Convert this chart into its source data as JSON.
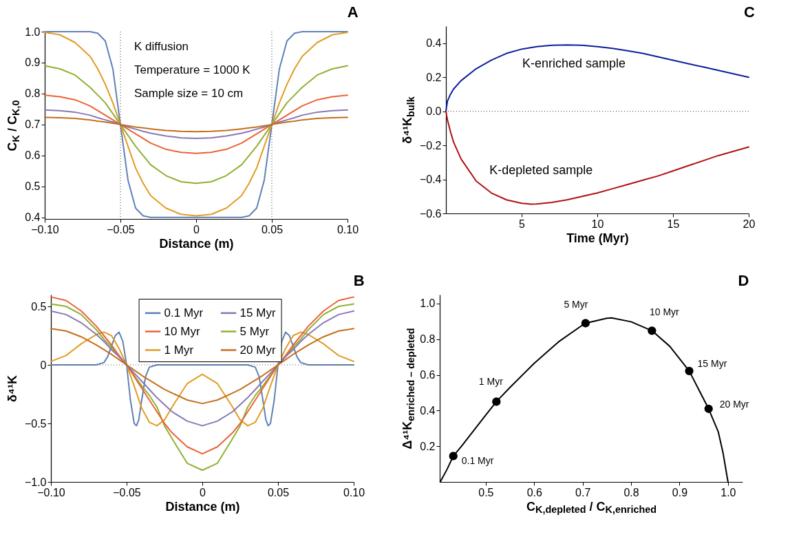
{
  "chart_data": [
    {
      "type": "line",
      "title": "A",
      "xlabel": "Distance (m)",
      "ylabel": "C$_{K}$ / C$_{K,0}$",
      "xlim": [
        -0.1,
        0.1
      ],
      "ylim": [
        0.395,
        1.0
      ],
      "xticks": [
        {
          "value": -0.1,
          "label": "−0.10"
        },
        -0.05,
        0,
        0.05,
        {
          "value": 0.1,
          "label": "0.10"
        }
      ],
      "yticks": [
        0.4,
        0.5,
        0.6,
        0.7,
        0.8,
        0.9,
        {
          "value": 1.0,
          "label": "1.0"
        }
      ],
      "x": [
        -0.1,
        -0.09,
        -0.08,
        -0.07,
        -0.065,
        -0.06,
        -0.055,
        -0.05,
        -0.045,
        -0.04,
        -0.035,
        -0.03,
        -0.02,
        -0.01,
        0,
        0.01,
        0.02,
        0.03,
        0.035,
        0.04,
        0.045,
        0.05,
        0.055,
        0.06,
        0.065,
        0.07,
        0.08,
        0.09,
        0.1
      ],
      "series": [
        {
          "color": "#5e81b5",
          "values": [
            1,
            1,
            1,
            1,
            0.995,
            0.97,
            0.88,
            0.7,
            0.52,
            0.43,
            0.405,
            0.4,
            0.4,
            0.4,
            0.4,
            0.4,
            0.4,
            0.4,
            0.405,
            0.43,
            0.52,
            0.7,
            0.88,
            0.97,
            0.995,
            1,
            1,
            1,
            1
          ]
        },
        {
          "color": "#e19c24",
          "values": [
            0.998,
            0.99,
            0.965,
            0.92,
            0.88,
            0.83,
            0.77,
            0.7,
            0.63,
            0.56,
            0.51,
            0.47,
            0.43,
            0.41,
            0.405,
            0.41,
            0.43,
            0.47,
            0.51,
            0.56,
            0.63,
            0.7,
            0.77,
            0.83,
            0.88,
            0.92,
            0.965,
            0.99,
            0.998
          ]
        },
        {
          "color": "#8fb032",
          "values": [
            0.89,
            0.88,
            0.86,
            0.82,
            0.795,
            0.77,
            0.735,
            0.7,
            0.665,
            0.63,
            0.6,
            0.57,
            0.535,
            0.515,
            0.51,
            0.515,
            0.535,
            0.57,
            0.6,
            0.63,
            0.665,
            0.7,
            0.735,
            0.77,
            0.795,
            0.82,
            0.86,
            0.88,
            0.89
          ]
        },
        {
          "color": "#eb6235",
          "values": [
            0.795,
            0.79,
            0.78,
            0.76,
            0.745,
            0.73,
            0.715,
            0.7,
            0.685,
            0.67,
            0.655,
            0.64,
            0.62,
            0.61,
            0.607,
            0.61,
            0.62,
            0.64,
            0.655,
            0.67,
            0.685,
            0.7,
            0.715,
            0.73,
            0.745,
            0.76,
            0.78,
            0.79,
            0.795
          ]
        },
        {
          "color": "#8778b3",
          "values": [
            0.747,
            0.745,
            0.74,
            0.73,
            0.722,
            0.715,
            0.708,
            0.7,
            0.692,
            0.685,
            0.678,
            0.672,
            0.663,
            0.657,
            0.655,
            0.657,
            0.663,
            0.672,
            0.678,
            0.685,
            0.692,
            0.7,
            0.708,
            0.715,
            0.722,
            0.73,
            0.74,
            0.745,
            0.747
          ]
        },
        {
          "color": "#c56e1a",
          "values": [
            0.723,
            0.722,
            0.72,
            0.715,
            0.711,
            0.708,
            0.704,
            0.7,
            0.696,
            0.692,
            0.689,
            0.686,
            0.681,
            0.678,
            0.677,
            0.678,
            0.681,
            0.686,
            0.689,
            0.692,
            0.696,
            0.7,
            0.704,
            0.708,
            0.711,
            0.715,
            0.72,
            0.722,
            0.723
          ]
        }
      ],
      "ref_lines": [
        {
          "axis": "x",
          "value": -0.05,
          "line_style": "dotted",
          "color": "#555555"
        },
        {
          "axis": "x",
          "value": 0.05,
          "line_style": "dotted",
          "color": "#555555"
        }
      ],
      "annotations": [
        "K diffusion",
        "Temperature = 1000 K",
        "Sample size = 10 cm"
      ]
    },
    {
      "type": "line",
      "title": "C",
      "xlabel": "Time (Myr)",
      "ylabel": "δ⁴¹K$_{bulk}$",
      "xlim": [
        0,
        20
      ],
      "ylim": [
        -0.6,
        0.5
      ],
      "xticks": [
        5,
        10,
        15,
        20
      ],
      "yticks": [
        -0.6,
        -0.4,
        -0.2,
        {
          "value": 0,
          "label": "0.0"
        },
        0.2,
        0.4
      ],
      "series": [
        {
          "name": "K-enriched sample",
          "color": "#0a1f9e",
          "x": [
            0,
            0.1,
            0.3,
            0.5,
            1,
            2,
            3,
            4,
            5,
            6,
            7,
            8,
            9,
            10,
            11,
            12,
            13,
            14,
            15,
            16,
            17,
            18,
            19,
            20
          ],
          "values": [
            0,
            0.06,
            0.1,
            0.13,
            0.18,
            0.25,
            0.3,
            0.34,
            0.365,
            0.38,
            0.388,
            0.39,
            0.388,
            0.38,
            0.37,
            0.355,
            0.34,
            0.32,
            0.3,
            0.28,
            0.26,
            0.24,
            0.22,
            0.2
          ]
        },
        {
          "name": "K-depleted sample",
          "color": "#b01010",
          "x": [
            0,
            0.1,
            0.3,
            0.5,
            1,
            2,
            3,
            4,
            5,
            5.6,
            6,
            7,
            8,
            9,
            10,
            11,
            12,
            13,
            14,
            15,
            16,
            17,
            18,
            19,
            20
          ],
          "values": [
            0,
            -0.05,
            -0.12,
            -0.18,
            -0.28,
            -0.41,
            -0.48,
            -0.52,
            -0.54,
            -0.545,
            -0.544,
            -0.535,
            -0.52,
            -0.5,
            -0.48,
            -0.455,
            -0.43,
            -0.405,
            -0.38,
            -0.35,
            -0.32,
            -0.29,
            -0.26,
            -0.235,
            -0.21
          ]
        }
      ],
      "ref_lines": [
        {
          "axis": "y",
          "value": 0,
          "line_style": "dotted",
          "color": "#555555"
        }
      ]
    },
    {
      "type": "line",
      "title": "B",
      "xlabel": "Distance (m)",
      "ylabel": "δ⁴¹K",
      "xlim": [
        -0.1,
        0.1
      ],
      "ylim": [
        -1.0,
        0.6
      ],
      "xticks": [
        {
          "value": -0.1,
          "label": "−0.10"
        },
        -0.05,
        0,
        0.05,
        {
          "value": 0.1,
          "label": "0.10"
        }
      ],
      "yticks": [
        {
          "value": -1.0,
          "label": "−1.0"
        },
        -0.5,
        0,
        0.5
      ],
      "x": [
        -0.1,
        -0.09,
        -0.08,
        -0.07,
        -0.065,
        -0.06,
        -0.055,
        -0.05,
        -0.045,
        -0.04,
        -0.035,
        -0.03,
        -0.025,
        -0.02,
        -0.01,
        0,
        0.01,
        0.02,
        0.025,
        0.03,
        0.035,
        0.04,
        0.045,
        0.05,
        0.055,
        0.06,
        0.065,
        0.07,
        0.08,
        0.09,
        0.1
      ],
      "series": [
        {
          "name": "0.1 Myr",
          "color": "#5e81b5",
          "x": [
            -0.1,
            -0.07,
            -0.065,
            -0.0625,
            -0.06,
            -0.0575,
            -0.055,
            -0.0525,
            -0.05,
            -0.0475,
            -0.045,
            -0.0435,
            -0.042,
            -0.04,
            -0.0375,
            -0.035,
            -0.03,
            0,
            0.03,
            0.035,
            0.0375,
            0.04,
            0.042,
            0.0435,
            0.045,
            0.0475,
            0.05,
            0.0525,
            0.055,
            0.0575,
            0.06,
            0.0625,
            0.065,
            0.07,
            0.1
          ],
          "values": [
            0,
            0,
            0.02,
            0.07,
            0.16,
            0.25,
            0.28,
            0.2,
            0,
            -0.3,
            -0.5,
            -0.52,
            -0.47,
            -0.3,
            -0.1,
            -0.02,
            0,
            0,
            0,
            -0.02,
            -0.1,
            -0.3,
            -0.47,
            -0.52,
            -0.5,
            -0.3,
            0,
            0.2,
            0.28,
            0.25,
            0.16,
            0.07,
            0.02,
            0,
            0
          ]
        },
        {
          "name": "1 Myr",
          "color": "#e19c24",
          "values": [
            0.03,
            0.08,
            0.18,
            0.26,
            0.28,
            0.25,
            0.14,
            0,
            -0.18,
            -0.37,
            -0.49,
            -0.52,
            -0.47,
            -0.36,
            -0.16,
            -0.08,
            -0.16,
            -0.36,
            -0.47,
            -0.52,
            -0.49,
            -0.37,
            -0.18,
            0,
            0.14,
            0.25,
            0.28,
            0.26,
            0.18,
            0.08,
            0.03
          ]
        },
        {
          "name": "5 Myr",
          "color": "#8fb032",
          "values": [
            0.52,
            0.5,
            0.43,
            0.3,
            0.22,
            0.15,
            0.07,
            0,
            -0.09,
            -0.18,
            -0.26,
            -0.36,
            -0.52,
            -0.63,
            -0.84,
            -0.9,
            -0.84,
            -0.63,
            -0.52,
            -0.36,
            -0.26,
            -0.18,
            -0.09,
            0,
            0.07,
            0.15,
            0.22,
            0.3,
            0.43,
            0.5,
            0.52
          ]
        },
        {
          "name": "10 Myr",
          "color": "#eb6235",
          "values": [
            0.58,
            0.55,
            0.46,
            0.33,
            0.25,
            0.17,
            0.08,
            0,
            -0.1,
            -0.2,
            -0.3,
            -0.4,
            -0.5,
            -0.58,
            -0.7,
            -0.76,
            -0.7,
            -0.58,
            -0.5,
            -0.4,
            -0.3,
            -0.2,
            -0.1,
            0,
            0.08,
            0.17,
            0.25,
            0.33,
            0.46,
            0.55,
            0.58
          ]
        },
        {
          "name": "15 Myr",
          "color": "#8778b3",
          "values": [
            0.46,
            0.43,
            0.36,
            0.26,
            0.2,
            0.13,
            0.07,
            0,
            -0.07,
            -0.14,
            -0.21,
            -0.28,
            -0.34,
            -0.4,
            -0.48,
            -0.52,
            -0.48,
            -0.4,
            -0.34,
            -0.28,
            -0.21,
            -0.14,
            -0.07,
            0,
            0.07,
            0.13,
            0.2,
            0.26,
            0.36,
            0.43,
            0.46
          ]
        },
        {
          "name": "20 Myr",
          "color": "#c56e1a",
          "values": [
            0.31,
            0.29,
            0.24,
            0.17,
            0.13,
            0.09,
            0.045,
            0,
            -0.045,
            -0.09,
            -0.13,
            -0.17,
            -0.21,
            -0.24,
            -0.3,
            -0.33,
            -0.3,
            -0.24,
            -0.21,
            -0.17,
            -0.13,
            -0.09,
            -0.045,
            0,
            0.045,
            0.09,
            0.13,
            0.17,
            0.24,
            0.29,
            0.31
          ]
        }
      ],
      "legend": "top",
      "ref_lines": [
        {
          "axis": "y",
          "value": 0,
          "line_style": "dotted",
          "color": "#555555"
        }
      ]
    },
    {
      "type": "scatter",
      "title": "D",
      "xlabel": "C$_{K,depleted}$ / C$_{K,enriched}$",
      "ylabel": "Δ⁴¹K$_{enriched – depleted}$",
      "xlim": [
        0.405,
        1.03
      ],
      "ylim": [
        0,
        1.05
      ],
      "xticks": [
        0.5,
        0.6,
        0.7,
        0.8,
        0.9,
        {
          "value": 1.0,
          "label": "1.0"
        }
      ],
      "yticks": [
        0.2,
        0.4,
        0.6,
        0.8,
        {
          "value": 1.0,
          "label": "1.0"
        }
      ],
      "series": [
        {
          "type": "line",
          "color": "#000000",
          "x": [
            0.406,
            0.42,
            0.433,
            0.45,
            0.5,
            0.522,
            0.55,
            0.6,
            0.65,
            0.7,
            0.706,
            0.75,
            0.76,
            0.8,
            0.843,
            0.88,
            0.92,
            0.96,
            0.98,
            0.99,
            1.0
          ],
          "values": [
            0,
            0.07,
            0.145,
            0.2,
            0.375,
            0.45,
            0.53,
            0.665,
            0.785,
            0.88,
            0.89,
            0.918,
            0.92,
            0.898,
            0.848,
            0.76,
            0.622,
            0.41,
            0.28,
            0.16,
            0
          ]
        },
        {
          "color": "#000000",
          "marker": "circle",
          "x": [
            0.433,
            0.522,
            0.706,
            0.843,
            0.92,
            0.96
          ],
          "values": [
            0.145,
            0.45,
            0.89,
            0.848,
            0.622,
            0.41
          ]
        }
      ],
      "annotations": [
        {
          "text": "0.1 Myr",
          "x": 0.433,
          "y": 0.145
        },
        {
          "text": "1 Myr",
          "x": 0.522,
          "y": 0.45
        },
        {
          "text": "5 Myr",
          "x": 0.706,
          "y": 0.89
        },
        {
          "text": "10 Myr",
          "x": 0.843,
          "y": 0.848
        },
        {
          "text": "15 Myr",
          "x": 0.92,
          "y": 0.622
        },
        {
          "text": "20 Myr",
          "x": 0.96,
          "y": 0.41
        }
      ]
    }
  ]
}
